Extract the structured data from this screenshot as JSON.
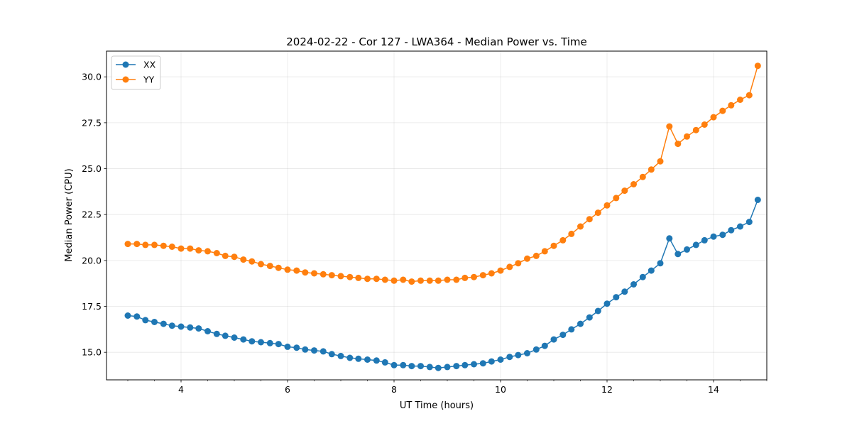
{
  "chart_data": {
    "type": "line",
    "title": "2024-02-22 - Cor 127 - LWA364 - Median Power vs. Time",
    "xlabel": "UT Time (hours)",
    "ylabel": "Median Power (CPU)",
    "xlim": [
      2.6,
      15.0
    ],
    "ylim": [
      13.5,
      31.4
    ],
    "xticks": [
      4,
      6,
      8,
      10,
      12,
      14
    ],
    "xtick_labels": [
      "4",
      "6",
      "8",
      "10",
      "12",
      "14"
    ],
    "yticks": [
      15.0,
      17.5,
      20.0,
      22.5,
      25.0,
      27.5,
      30.0
    ],
    "ytick_labels": [
      "15.0",
      "17.5",
      "20.0",
      "22.5",
      "25.0",
      "27.5",
      "30.0"
    ],
    "grid": true,
    "legend_position": "upper-left",
    "series": [
      {
        "name": "XX",
        "color": "#1f77b4",
        "x": [
          3.0,
          3.17,
          3.33,
          3.5,
          3.67,
          3.83,
          4.0,
          4.17,
          4.33,
          4.5,
          4.67,
          4.83,
          5.0,
          5.17,
          5.33,
          5.5,
          5.67,
          5.83,
          6.0,
          6.17,
          6.33,
          6.5,
          6.67,
          6.83,
          7.0,
          7.17,
          7.33,
          7.5,
          7.67,
          7.83,
          8.0,
          8.17,
          8.33,
          8.5,
          8.67,
          8.83,
          9.0,
          9.17,
          9.33,
          9.5,
          9.67,
          9.83,
          10.0,
          10.17,
          10.33,
          10.5,
          10.67,
          10.83,
          11.0,
          11.17,
          11.33,
          11.5,
          11.67,
          11.83,
          12.0,
          12.17,
          12.33,
          12.5,
          12.67,
          12.83,
          13.0,
          13.17,
          13.33,
          13.5,
          13.67,
          13.83,
          14.0,
          14.17,
          14.33,
          14.5,
          14.67,
          14.83
        ],
        "values": [
          17.0,
          16.95,
          16.75,
          16.65,
          16.55,
          16.45,
          16.4,
          16.35,
          16.3,
          16.15,
          16.0,
          15.9,
          15.8,
          15.7,
          15.6,
          15.55,
          15.5,
          15.45,
          15.3,
          15.25,
          15.15,
          15.1,
          15.05,
          14.9,
          14.8,
          14.7,
          14.65,
          14.6,
          14.55,
          14.45,
          14.3,
          14.3,
          14.25,
          14.25,
          14.2,
          14.15,
          14.2,
          14.25,
          14.3,
          14.35,
          14.4,
          14.5,
          14.6,
          14.75,
          14.85,
          14.95,
          15.15,
          15.35,
          15.7,
          15.95,
          16.25,
          16.55,
          16.9,
          17.25,
          17.65,
          18.0,
          18.3,
          18.7,
          19.1,
          19.45,
          19.85,
          21.2,
          20.35,
          20.6,
          20.85,
          21.1,
          21.3,
          21.4,
          21.65,
          21.85,
          22.1,
          23.3
        ]
      },
      {
        "name": "YY",
        "color": "#ff7f0e",
        "x": [
          3.0,
          3.17,
          3.33,
          3.5,
          3.67,
          3.83,
          4.0,
          4.17,
          4.33,
          4.5,
          4.67,
          4.83,
          5.0,
          5.17,
          5.33,
          5.5,
          5.67,
          5.83,
          6.0,
          6.17,
          6.33,
          6.5,
          6.67,
          6.83,
          7.0,
          7.17,
          7.33,
          7.5,
          7.67,
          7.83,
          8.0,
          8.17,
          8.33,
          8.5,
          8.67,
          8.83,
          9.0,
          9.17,
          9.33,
          9.5,
          9.67,
          9.83,
          10.0,
          10.17,
          10.33,
          10.5,
          10.67,
          10.83,
          11.0,
          11.17,
          11.33,
          11.5,
          11.67,
          11.83,
          12.0,
          12.17,
          12.33,
          12.5,
          12.67,
          12.83,
          13.0,
          13.17,
          13.33,
          13.5,
          13.67,
          13.83,
          14.0,
          14.17,
          14.33,
          14.5,
          14.67,
          14.83
        ],
        "values": [
          20.9,
          20.9,
          20.85,
          20.85,
          20.8,
          20.75,
          20.65,
          20.65,
          20.55,
          20.5,
          20.4,
          20.25,
          20.2,
          20.05,
          19.95,
          19.8,
          19.7,
          19.6,
          19.5,
          19.45,
          19.35,
          19.3,
          19.25,
          19.2,
          19.15,
          19.1,
          19.05,
          19.0,
          19.0,
          18.95,
          18.9,
          18.95,
          18.85,
          18.9,
          18.9,
          18.9,
          18.95,
          18.95,
          19.05,
          19.1,
          19.2,
          19.3,
          19.45,
          19.65,
          19.85,
          20.1,
          20.25,
          20.5,
          20.8,
          21.1,
          21.45,
          21.85,
          22.25,
          22.6,
          23.0,
          23.4,
          23.8,
          24.15,
          24.55,
          24.95,
          25.4,
          27.3,
          26.35,
          26.75,
          27.1,
          27.4,
          27.8,
          28.15,
          28.45,
          28.75,
          29.0,
          30.6
        ]
      }
    ]
  }
}
